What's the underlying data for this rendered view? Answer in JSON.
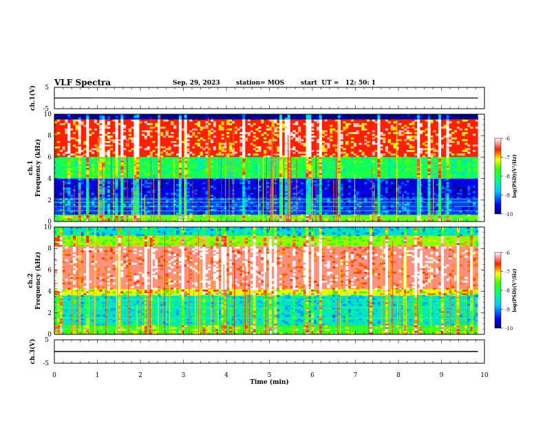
{
  "header": {
    "title": "VLF Spectra",
    "date": "Sep. 29, 2023",
    "station": "station= MOS",
    "start": "start  UT =   12: 50: 1"
  },
  "chart_data": [
    {
      "type": "line",
      "panel": "ch1-waveform",
      "ylabel": "ch.1(V)",
      "yticks": [
        "5",
        "-5"
      ],
      "ylim": [
        -5,
        5
      ],
      "series": [
        {
          "values": [
            0.0,
            0.05,
            -0.02,
            0.03,
            0.0,
            0.04,
            -0.01,
            0.02,
            0.0,
            0.03,
            0.0
          ]
        }
      ],
      "x": [
        0,
        1,
        2,
        3,
        4,
        5,
        6,
        7,
        8,
        9,
        9.85
      ]
    },
    {
      "type": "heatmap",
      "panel": "ch1-spectrogram",
      "ylabel": "ch.1\nFrequency (kHz)",
      "ylabel_line1": "ch.1",
      "ylabel_line2": "Frequency (kHz)",
      "ylim": [
        0,
        10
      ],
      "yticks": [
        "0",
        "2",
        "4",
        "6",
        "8",
        "10"
      ],
      "xlim": [
        0,
        10
      ],
      "colorbar": {
        "label": "log(PSD)(V²/Hz)",
        "ticks": [
          "-6",
          "-7",
          "-8",
          "-9",
          "-10"
        ],
        "range": [
          -10,
          -6
        ]
      },
      "bands": [
        {
          "f_low": 9.5,
          "f_high": 10.0,
          "level": -10
        },
        {
          "f_low": 6.0,
          "f_high": 9.5,
          "level": -6.6
        },
        {
          "f_low": 4.0,
          "f_high": 6.0,
          "level": -8.0
        },
        {
          "f_low": 2.2,
          "f_high": 4.0,
          "level": -9.6
        },
        {
          "f_low": 0.6,
          "f_high": 2.2,
          "level": -9.3
        },
        {
          "f_low": 0.0,
          "f_high": 0.6,
          "level": -7.5
        }
      ],
      "lines_khz": [
        0.3,
        0.6,
        1.0,
        1.4,
        1.8,
        2.1
      ]
    },
    {
      "type": "heatmap",
      "panel": "ch2-spectrogram",
      "ylabel": "ch.2\nFrequency (kHz)",
      "ylabel_line1": "ch.2",
      "ylabel_line2": "Frequency (kHz)",
      "ylim": [
        0,
        10
      ],
      "yticks": [
        "0",
        "2",
        "4",
        "6",
        "8",
        "10"
      ],
      "xlim": [
        0,
        10
      ],
      "colorbar": {
        "label": "log(PSD)(V²/Hz)",
        "ticks": [
          "-6",
          "-7",
          "-8",
          "-9",
          "-10"
        ],
        "range": [
          -10,
          -6
        ]
      },
      "bands": [
        {
          "f_low": 9.2,
          "f_high": 10.0,
          "level": -8.6
        },
        {
          "f_low": 8.2,
          "f_high": 9.2,
          "level": -7.4
        },
        {
          "f_low": 4.2,
          "f_high": 8.2,
          "level": -6.3
        },
        {
          "f_low": 3.6,
          "f_high": 4.2,
          "level": -7.2
        },
        {
          "f_low": 0.8,
          "f_high": 3.6,
          "level": -8.5
        },
        {
          "f_low": 0.0,
          "f_high": 0.8,
          "level": -7.6
        }
      ],
      "lines_khz": [
        0.5,
        1.5,
        2.5,
        3.2
      ]
    },
    {
      "type": "line",
      "panel": "ch3-waveform",
      "ylabel": "ch.3(V)",
      "yticks": [
        "5",
        "-5"
      ],
      "ylim": [
        -5,
        5
      ],
      "series": [
        {
          "values": [
            0,
            0,
            0,
            0,
            0,
            0,
            0,
            0,
            0,
            0,
            0
          ]
        }
      ],
      "x": [
        0,
        1,
        2,
        3,
        4,
        5,
        6,
        7,
        8,
        9,
        9.85
      ]
    }
  ],
  "xaxis": {
    "label": "Time (min)",
    "ticks": [
      "0",
      "1",
      "2",
      "3",
      "4",
      "5",
      "6",
      "7",
      "8",
      "9",
      "10"
    ],
    "xlim": [
      0,
      10
    ]
  }
}
